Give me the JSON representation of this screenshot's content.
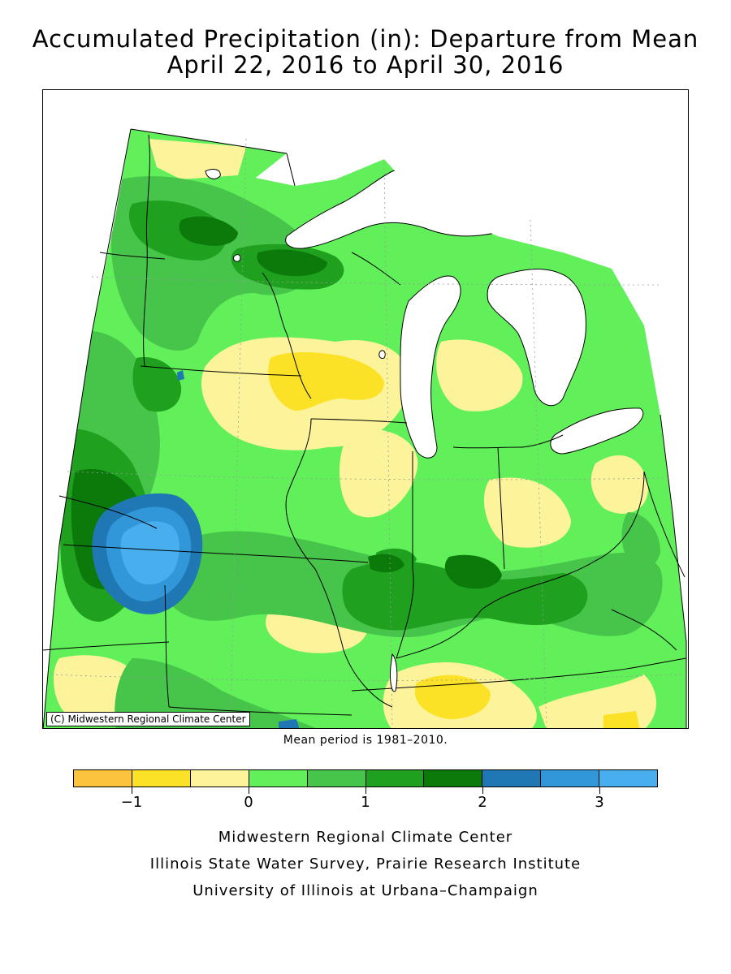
{
  "title": {
    "line1": "Accumulated Precipitation (in): Departure from Mean",
    "line2": "April 22, 2016 to April 30, 2016"
  },
  "map": {
    "credit": "(C) Midwestern Regional Climate Center",
    "colors": {
      "water": "#ffffff",
      "neg1_5": "#fcc43c",
      "neg1_0": "#fbe226",
      "neg0_5": "#fcf39b",
      "pos0_0": "#61f05a",
      "pos0_5": "#47c44a",
      "pos1_0": "#1fa01e",
      "pos1_5": "#0b7a0b",
      "pos2_0": "#1f78b4",
      "pos2_5": "#3197d8",
      "pos3_0": "#48aeee"
    }
  },
  "note": "Mean period is 1981–2010.",
  "legend": {
    "colors": [
      "#fcc43c",
      "#fbe226",
      "#fcf39b",
      "#61f05a",
      "#47c44a",
      "#1fa01e",
      "#0b7a0b",
      "#1f78b4",
      "#3197d8",
      "#48aeee"
    ],
    "ticks": [
      {
        "value": -1,
        "label": "−1"
      },
      {
        "value": 0,
        "label": "0"
      },
      {
        "value": 1,
        "label": "1"
      },
      {
        "value": 2,
        "label": "2"
      },
      {
        "value": 3,
        "label": "3"
      }
    ],
    "min": -1.5,
    "max": 3.5
  },
  "footer": {
    "line1": "Midwestern Regional Climate Center",
    "line2": "Illinois State Water Survey, Prairie Research Institute",
    "line3": "University of Illinois at Urbana–Champaign"
  }
}
